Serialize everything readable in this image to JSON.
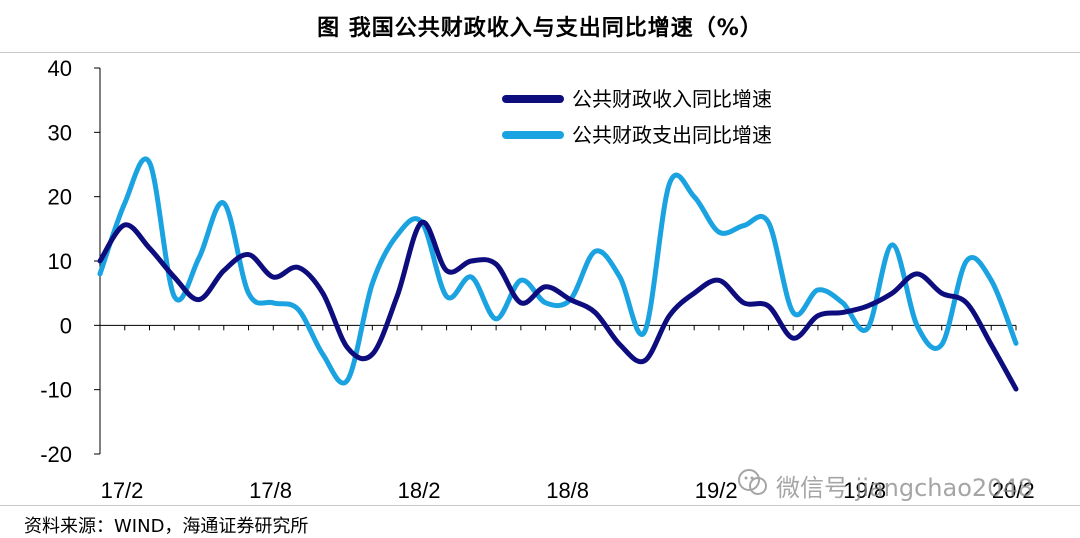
{
  "title": "图    我国公共财政收入与支出同比增速（%）",
  "source": "资料来源：WIND，海通证券研究所",
  "watermark": "微信号 jiangchao2048",
  "chart_data": {
    "type": "line",
    "y_ticks": [
      40,
      30,
      20,
      10,
      0,
      -10,
      -20
    ],
    "ylim": [
      -20,
      40
    ],
    "x_tick_labels": [
      "17/2",
      "17/8",
      "18/2",
      "18/8",
      "19/2",
      "19/8",
      "20/2"
    ],
    "x_tick_index": [
      0,
      6,
      12,
      18,
      24,
      30,
      36
    ],
    "legend": {
      "position": "top-right"
    },
    "series": [
      {
        "name": "公共财政收入同比增速",
        "color": "#0d0d7e",
        "values": [
          10,
          15.6,
          12,
          7.5,
          4,
          8.5,
          11,
          7.5,
          9,
          5,
          -3.5,
          -4.5,
          4.5,
          16,
          8.5,
          10,
          9.5,
          3.5,
          6,
          4,
          2,
          -3,
          -5.5,
          1.5,
          5,
          7,
          3.5,
          3,
          -2,
          1.5,
          2,
          3,
          5,
          8,
          5,
          3.5,
          -3,
          -9.9
        ]
      },
      {
        "name": "公共财政支出同比增速",
        "color": "#1aa3e0",
        "values": [
          8,
          19,
          25.3,
          4.5,
          10.5,
          19,
          5,
          3.5,
          2.5,
          -4.5,
          -8.5,
          6.5,
          14,
          16,
          4.5,
          7.5,
          1,
          7,
          3.5,
          4,
          11.5,
          7.5,
          -1,
          22,
          20,
          14.5,
          15.5,
          16,
          2,
          5.5,
          3.5,
          -0.5,
          12.5,
          0,
          -3,
          10,
          7,
          -2.8
        ]
      }
    ]
  }
}
